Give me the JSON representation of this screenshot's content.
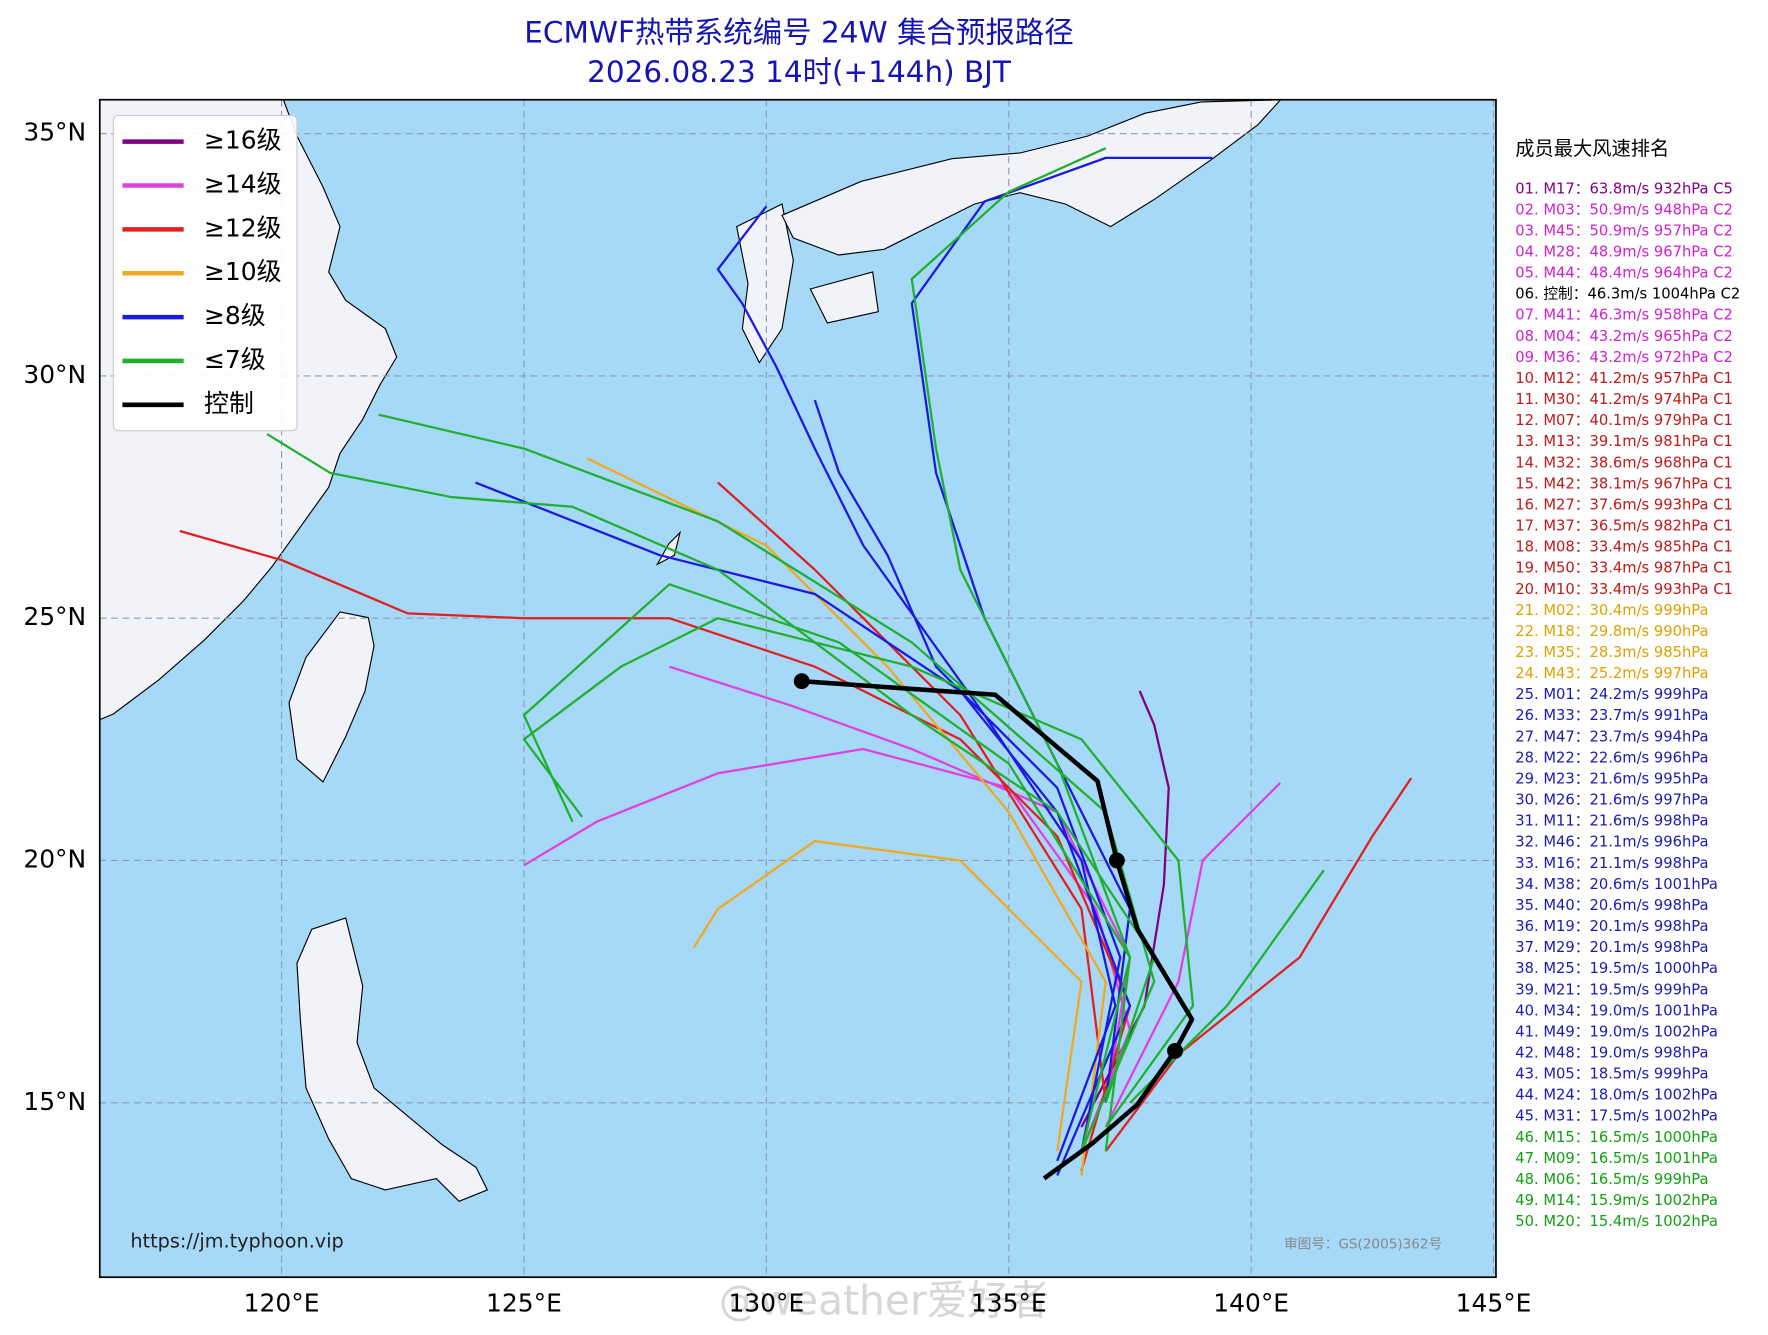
{
  "header": {
    "title": "ECMWF热带系统编号 24W 集合预报路径",
    "subtitle": "2026.08.23 14时(+144h) BJT"
  },
  "map": {
    "xlim": [
      116.25,
      145.05
    ],
    "ylim": [
      11.4,
      35.7
    ],
    "xticks": [
      {
        "value": 120,
        "label": "120°E"
      },
      {
        "value": 125,
        "label": "125°E"
      },
      {
        "value": 130,
        "label": "130°E"
      },
      {
        "value": 135,
        "label": "135°E"
      },
      {
        "value": 140,
        "label": "140°E"
      },
      {
        "value": 145,
        "label": "145°E"
      }
    ],
    "yticks": [
      {
        "value": 15,
        "label": "15°N"
      },
      {
        "value": 20,
        "label": "20°N"
      },
      {
        "value": 25,
        "label": "25°N"
      },
      {
        "value": 30,
        "label": "30°N"
      },
      {
        "value": 35,
        "label": "35°N"
      }
    ],
    "ocean_color": "#a6d8f7",
    "grid": true
  },
  "legend": [
    {
      "label": "≥16级",
      "color": "#800080"
    },
    {
      "label": "≥14级",
      "color": "#e040e0"
    },
    {
      "label": "≥12级",
      "color": "#e02020"
    },
    {
      "label": "≥10级",
      "color": "#f0a820"
    },
    {
      "label": "≥8级",
      "color": "#1a1ae0"
    },
    {
      "label": "≤7级",
      "color": "#20b030"
    },
    {
      "label": "控制",
      "color": "#000000"
    }
  ],
  "control": {
    "color": "#000000",
    "points": [
      [
        135.73,
        13.44
      ],
      [
        136.71,
        14.15
      ],
      [
        137.65,
        14.96
      ],
      [
        138.43,
        16.07
      ],
      [
        138.78,
        16.72
      ],
      [
        137.65,
        18.59
      ],
      [
        137.23,
        20.0
      ],
      [
        136.83,
        21.64
      ],
      [
        134.72,
        23.42
      ],
      [
        130.73,
        23.7
      ]
    ],
    "dots": [
      [
        138.43,
        16.07
      ],
      [
        137.23,
        20.0
      ],
      [
        130.73,
        23.7
      ]
    ]
  },
  "tracks": [
    {
      "color": "#800080",
      "points": [
        [
          136.5,
          14.5
        ],
        [
          137.8,
          17
        ],
        [
          138.2,
          19.5
        ],
        [
          138.3,
          21.5
        ],
        [
          138.0,
          22.8
        ],
        [
          137.7,
          23.5
        ]
      ]
    },
    {
      "color": "#e040e0",
      "points": [
        [
          136.5,
          14
        ],
        [
          137.5,
          16.5
        ],
        [
          136.8,
          19
        ],
        [
          135,
          21.5
        ],
        [
          132,
          22.3
        ],
        [
          129,
          21.8
        ],
        [
          126.5,
          20.8
        ],
        [
          125,
          19.9
        ]
      ]
    },
    {
      "color": "#e040e0",
      "points": [
        [
          137,
          15
        ],
        [
          137.5,
          18
        ],
        [
          136,
          21
        ],
        [
          133,
          22.3
        ],
        [
          130.5,
          23.2
        ],
        [
          128,
          24
        ]
      ]
    },
    {
      "color": "#e040e0",
      "points": [
        [
          137,
          14.5
        ],
        [
          138.5,
          17.5
        ],
        [
          139,
          20
        ],
        [
          140.6,
          21.6
        ]
      ]
    },
    {
      "color": "#e02020",
      "points": [
        [
          136.5,
          13.6
        ],
        [
          137.5,
          17
        ],
        [
          136,
          20.5
        ],
        [
          134,
          22.5
        ],
        [
          131,
          24
        ],
        [
          128,
          25
        ],
        [
          125,
          25
        ],
        [
          122.6,
          25.1
        ],
        [
          120,
          26.2
        ],
        [
          117.9,
          26.8
        ]
      ]
    },
    {
      "color": "#e02020",
      "points": [
        [
          137,
          14
        ],
        [
          138.5,
          16
        ],
        [
          141,
          18
        ],
        [
          142.5,
          20.5
        ],
        [
          143.3,
          21.7
        ]
      ]
    },
    {
      "color": "#e02020",
      "points": [
        [
          137,
          15
        ],
        [
          136.5,
          19
        ],
        [
          134,
          23
        ],
        [
          131,
          26
        ],
        [
          129,
          27.8
        ]
      ]
    },
    {
      "color": "#f0a820",
      "points": [
        [
          136.5,
          13.5
        ],
        [
          137,
          17.5
        ],
        [
          135,
          21
        ],
        [
          132.5,
          24
        ],
        [
          130,
          26.5
        ],
        [
          126.3,
          28.3
        ]
      ]
    },
    {
      "color": "#f0a820",
      "points": [
        [
          136,
          14
        ],
        [
          136.5,
          17.5
        ],
        [
          134,
          20
        ],
        [
          131,
          20.4
        ],
        [
          129,
          19
        ],
        [
          128.5,
          18.2
        ]
      ]
    },
    {
      "color": "#1a1ae0",
      "points": [
        [
          136,
          13.8
        ],
        [
          137.2,
          17
        ],
        [
          136.5,
          20
        ],
        [
          134.5,
          23
        ],
        [
          132,
          26.5
        ],
        [
          131,
          28.5
        ],
        [
          130.2,
          30.2
        ],
        [
          129.5,
          31.5
        ],
        [
          129,
          32.2
        ],
        [
          130,
          33.5
        ]
      ]
    },
    {
      "color": "#1a1ae0",
      "points": [
        [
          136,
          13.5
        ],
        [
          137.5,
          17
        ],
        [
          136,
          21
        ],
        [
          134,
          23.5
        ],
        [
          131,
          25.5
        ],
        [
          127.8,
          26.3
        ],
        [
          124,
          27.8
        ]
      ]
    },
    {
      "color": "#1a1ae0",
      "points": [
        [
          136.5,
          14
        ],
        [
          137.3,
          18
        ],
        [
          136,
          21.5
        ],
        [
          133.5,
          24
        ],
        [
          132.5,
          26.3
        ],
        [
          131.5,
          28
        ],
        [
          131,
          29.5
        ]
      ]
    },
    {
      "color": "#1a1ae0",
      "points": [
        [
          137,
          15
        ],
        [
          137.5,
          19
        ],
        [
          136,
          22
        ],
        [
          134.5,
          25
        ],
        [
          133.5,
          28
        ],
        [
          133,
          31.5
        ],
        [
          134.5,
          33.6
        ],
        [
          137,
          34.5
        ],
        [
          139.2,
          34.5
        ]
      ]
    },
    {
      "color": "#20b030",
      "points": [
        [
          137,
          14.5
        ],
        [
          138.8,
          17
        ],
        [
          138.5,
          20
        ],
        [
          136.5,
          22.5
        ],
        [
          133,
          24
        ],
        [
          129,
          25
        ],
        [
          127,
          24
        ],
        [
          125,
          22.5
        ],
        [
          126.2,
          20.9
        ]
      ]
    },
    {
      "color": "#20b030",
      "points": [
        [
          136.5,
          14
        ],
        [
          138,
          17.5
        ],
        [
          137,
          21
        ],
        [
          133,
          24.5
        ],
        [
          129,
          27
        ],
        [
          125,
          28.5
        ],
        [
          122,
          29.2
        ]
      ]
    },
    {
      "color": "#20b030",
      "points": [
        [
          137.5,
          15
        ],
        [
          139.5,
          17
        ],
        [
          141.5,
          19.8
        ]
      ]
    },
    {
      "color": "#20b030",
      "points": [
        [
          137,
          14
        ],
        [
          137.5,
          18
        ],
        [
          136,
          22
        ],
        [
          134,
          26
        ],
        [
          133.5,
          28.5
        ],
        [
          133,
          32
        ],
        [
          135,
          33.8
        ],
        [
          137,
          34.7
        ]
      ]
    },
    {
      "color": "#20b030",
      "points": [
        [
          136.5,
          14
        ],
        [
          137.5,
          18
        ],
        [
          135,
          22
        ],
        [
          131.5,
          24.5
        ],
        [
          128,
          25.7
        ],
        [
          125,
          23
        ],
        [
          126,
          20.8
        ]
      ]
    },
    {
      "color": "#20b030",
      "points": [
        [
          137,
          15
        ],
        [
          138,
          18
        ],
        [
          136,
          21
        ],
        [
          133,
          23
        ],
        [
          129,
          26
        ],
        [
          126,
          27.3
        ],
        [
          123.5,
          27.5
        ],
        [
          121,
          28
        ],
        [
          119.7,
          28.8
        ]
      ]
    }
  ],
  "ranking": {
    "title": "成员最大风速排名",
    "items": [
      {
        "text": "01. M17：63.8m/s 932hPa C5",
        "color": "#800080"
      },
      {
        "text": "02. M03：50.9m/s 948hPa C2",
        "color": "#d020d0"
      },
      {
        "text": "03. M45：50.9m/s 957hPa C2",
        "color": "#d020d0"
      },
      {
        "text": "04. M28：48.9m/s 967hPa C2",
        "color": "#d020d0"
      },
      {
        "text": "05. M44：48.4m/s 964hPa C2",
        "color": "#d020d0"
      },
      {
        "text": "06. 控制：46.3m/s 1004hPa C2",
        "color": "#000000"
      },
      {
        "text": "07. M41：46.3m/s 958hPa C2",
        "color": "#d020d0"
      },
      {
        "text": "08. M04：43.2m/s 965hPa C2",
        "color": "#d020d0"
      },
      {
        "text": "09. M36：43.2m/s 972hPa C2",
        "color": "#d020d0"
      },
      {
        "text": "10. M12：41.2m/s 957hPa C1",
        "color": "#c01818"
      },
      {
        "text": "11. M30：41.2m/s 974hPa C1",
        "color": "#c01818"
      },
      {
        "text": "12. M07：40.1m/s 979hPa C1",
        "color": "#c01818"
      },
      {
        "text": "13. M13：39.1m/s 981hPa C1",
        "color": "#c01818"
      },
      {
        "text": "14. M32：38.6m/s 968hPa C1",
        "color": "#c01818"
      },
      {
        "text": "15. M42：38.1m/s 967hPa C1",
        "color": "#c01818"
      },
      {
        "text": "16. M27：37.6m/s 993hPa C1",
        "color": "#c01818"
      },
      {
        "text": "17. M37：36.5m/s 982hPa C1",
        "color": "#c01818"
      },
      {
        "text": "18. M08：33.4m/s 985hPa C1",
        "color": "#c01818"
      },
      {
        "text": "19. M50：33.4m/s 987hPa C1",
        "color": "#c01818"
      },
      {
        "text": "20. M10：33.4m/s 993hPa C1",
        "color": "#c01818"
      },
      {
        "text": "21. M02：30.4m/s 999hPa",
        "color": "#e0a000"
      },
      {
        "text": "22. M18：29.8m/s 990hPa",
        "color": "#e0a000"
      },
      {
        "text": "23. M35：28.3m/s 985hPa",
        "color": "#e0a000"
      },
      {
        "text": "24. M43：25.2m/s 997hPa",
        "color": "#e0a000"
      },
      {
        "text": "25. M01：24.2m/s 999hPa",
        "color": "#1a1ab0"
      },
      {
        "text": "26. M33：23.7m/s 991hPa",
        "color": "#1a1ab0"
      },
      {
        "text": "27. M47：23.7m/s 994hPa",
        "color": "#1a1ab0"
      },
      {
        "text": "28. M22：22.6m/s 996hPa",
        "color": "#1a1ab0"
      },
      {
        "text": "29. M23：21.6m/s 995hPa",
        "color": "#1a1ab0"
      },
      {
        "text": "30. M26：21.6m/s 997hPa",
        "color": "#1a1ab0"
      },
      {
        "text": "31. M11：21.6m/s 998hPa",
        "color": "#1a1ab0"
      },
      {
        "text": "32. M46：21.1m/s 996hPa",
        "color": "#1a1ab0"
      },
      {
        "text": "33. M16：21.1m/s 998hPa",
        "color": "#1a1ab0"
      },
      {
        "text": "34. M38：20.6m/s 1001hPa",
        "color": "#1a1ab0"
      },
      {
        "text": "35. M40：20.6m/s 998hPa",
        "color": "#1a1ab0"
      },
      {
        "text": "36. M19：20.1m/s 998hPa",
        "color": "#1a1ab0"
      },
      {
        "text": "37. M29：20.1m/s 998hPa",
        "color": "#1a1ab0"
      },
      {
        "text": "38. M25：19.5m/s 1000hPa",
        "color": "#1a1ab0"
      },
      {
        "text": "39. M21：19.5m/s 999hPa",
        "color": "#1a1ab0"
      },
      {
        "text": "40. M34：19.0m/s 1001hPa",
        "color": "#1a1ab0"
      },
      {
        "text": "41. M49：19.0m/s 1002hPa",
        "color": "#1a1ab0"
      },
      {
        "text": "42. M48：19.0m/s 998hPa",
        "color": "#1a1ab0"
      },
      {
        "text": "43. M05：18.5m/s 999hPa",
        "color": "#1a1ab0"
      },
      {
        "text": "44. M24：18.0m/s 1002hPa",
        "color": "#1a1ab0"
      },
      {
        "text": "45. M31：17.5m/s 1002hPa",
        "color": "#1a1ab0"
      },
      {
        "text": "46. M15：16.5m/s 1000hPa",
        "color": "#10a010"
      },
      {
        "text": "47. M09：16.5m/s 1001hPa",
        "color": "#10a010"
      },
      {
        "text": "48. M06：16.5m/s 999hPa",
        "color": "#10a010"
      },
      {
        "text": "49. M14：15.9m/s 1002hPa",
        "color": "#10a010"
      },
      {
        "text": "50. M20：15.4m/s 1002hPa",
        "color": "#10a010"
      }
    ]
  },
  "footer": {
    "url": "https://jm.typhoon.vip",
    "approval": "审图号：GS(2005)362号",
    "watermark": "@weather爱好者"
  }
}
